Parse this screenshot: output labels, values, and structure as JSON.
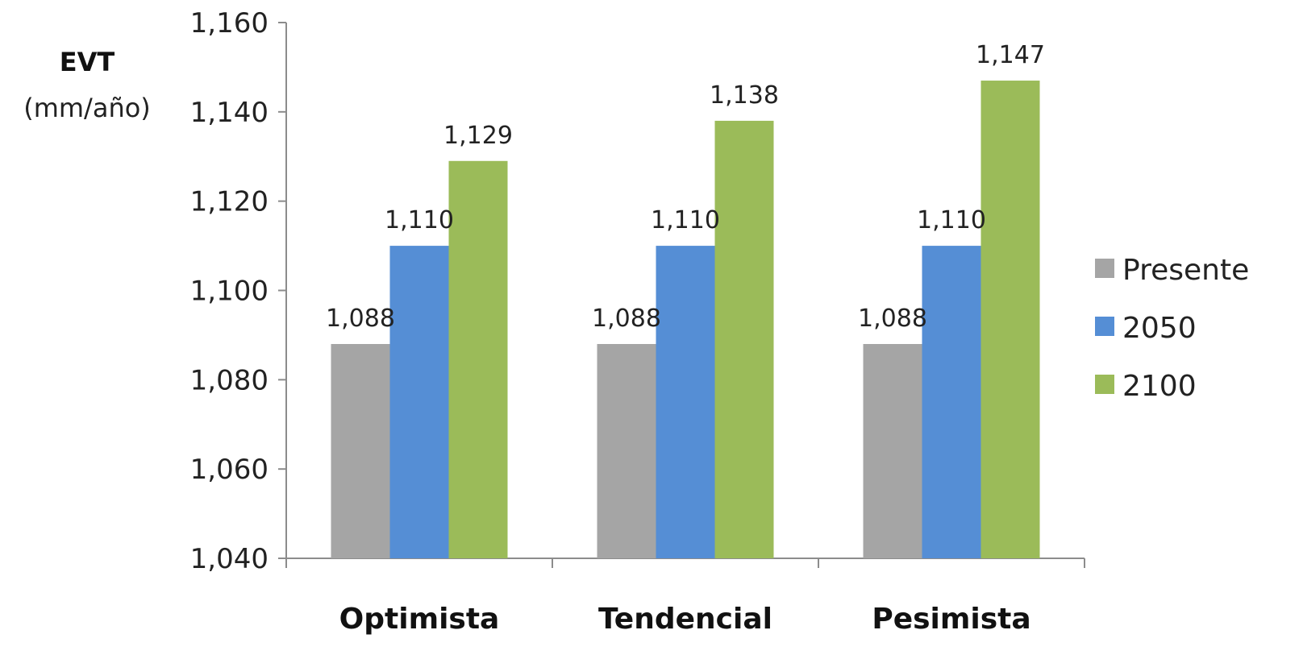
{
  "chart_data": {
    "type": "bar",
    "ylabel": "EVT",
    "ylabel_unit": "(mm/año)",
    "categories": [
      "Optimista",
      "Tendencial",
      "Pesimista"
    ],
    "series": [
      {
        "name": "Presente",
        "color": "#a5a5a5",
        "values": [
          1088,
          1088,
          1088
        ],
        "labels": [
          "1,088",
          "1,088",
          "1,088"
        ]
      },
      {
        "name": "2050",
        "color": "#558ed5",
        "values": [
          1110,
          1110,
          1110
        ],
        "labels": [
          "1,110",
          "1,110",
          "1,110"
        ]
      },
      {
        "name": "2100",
        "color": "#9bbb59",
        "values": [
          1129,
          1138,
          1147
        ],
        "labels": [
          "1,129",
          "1,138",
          "1,147"
        ]
      }
    ],
    "ylim": [
      1040,
      1160
    ],
    "yticks": [
      1040,
      1060,
      1080,
      1100,
      1120,
      1140,
      1160
    ],
    "ytick_labels": [
      "1,040",
      "1,060",
      "1,080",
      "1,100",
      "1,120",
      "1,140",
      "1,160"
    ],
    "grid": false,
    "legend_position": "right"
  }
}
